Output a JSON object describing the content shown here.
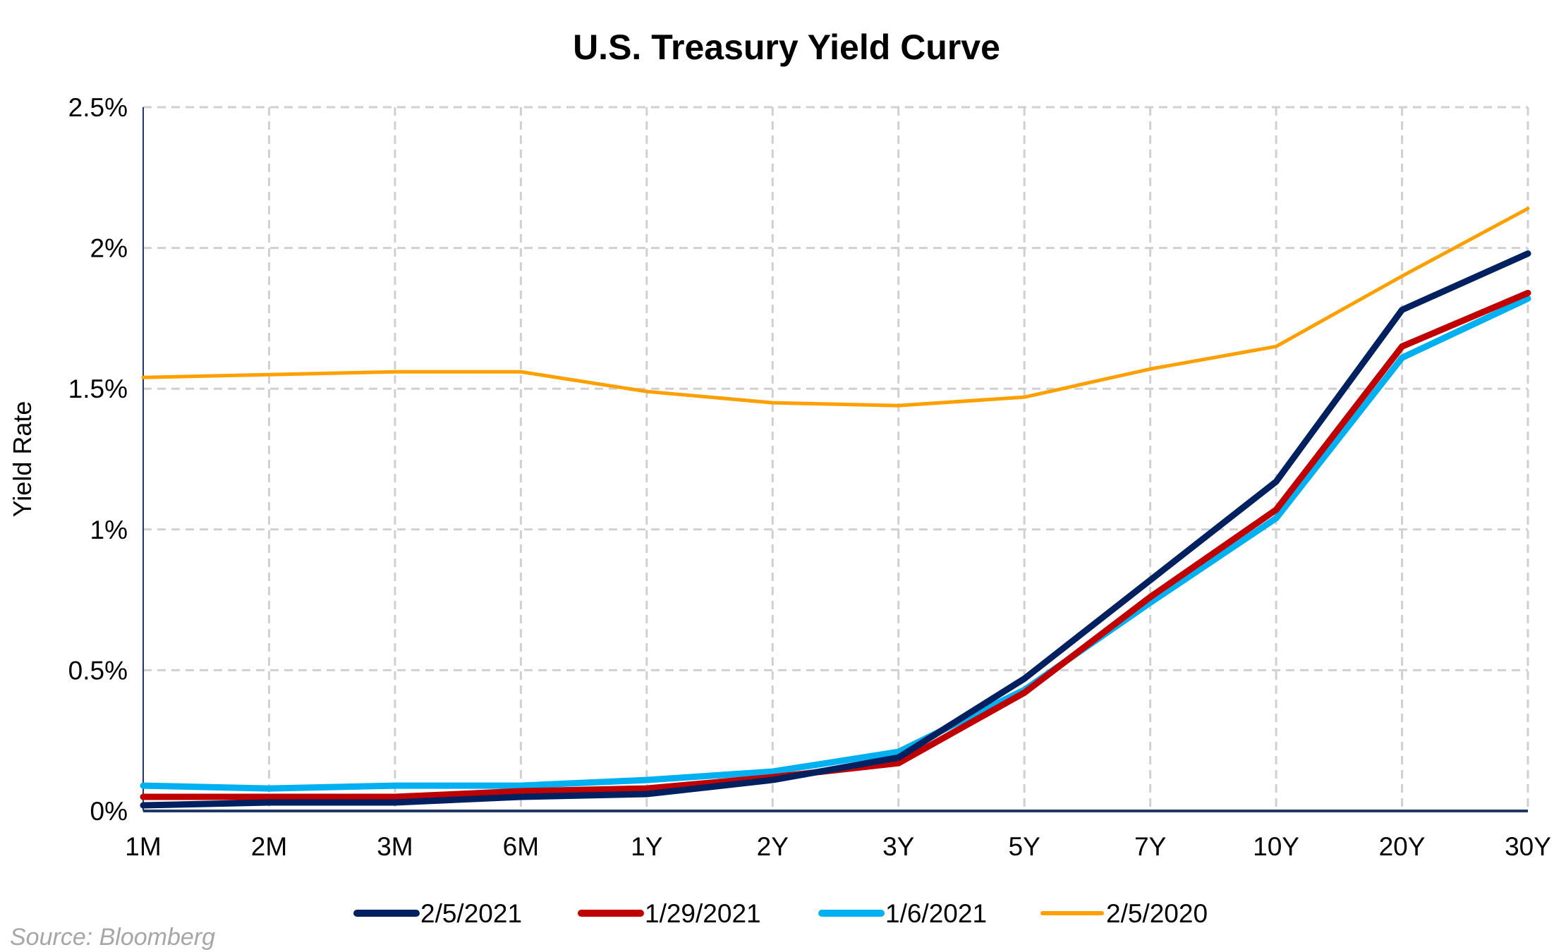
{
  "chart_data": {
    "type": "line",
    "title": "U.S. Treasury Yield Curve",
    "xlabel": "",
    "ylabel": "Yield Rate",
    "ylim": [
      0,
      2.5
    ],
    "yticks": [
      0,
      0.5,
      1,
      1.5,
      2,
      2.5
    ],
    "ytick_labels": [
      "0%",
      "0.5%",
      "1%",
      "1.5%",
      "2%",
      "2.5%"
    ],
    "categories": [
      "1M",
      "2M",
      "3M",
      "6M",
      "1Y",
      "2Y",
      "3Y",
      "5Y",
      "7Y",
      "10Y",
      "20Y",
      "30Y"
    ],
    "grid": true,
    "legend_position": "bottom",
    "series": [
      {
        "name": "2/5/2021",
        "color": "#002060",
        "values": [
          0.02,
          0.03,
          0.03,
          0.05,
          0.06,
          0.11,
          0.19,
          0.47,
          0.82,
          1.17,
          1.78,
          1.98
        ]
      },
      {
        "name": "1/29/2021",
        "color": "#C00000",
        "values": [
          0.05,
          0.05,
          0.05,
          0.07,
          0.08,
          0.12,
          0.17,
          0.42,
          0.76,
          1.07,
          1.65,
          1.84
        ]
      },
      {
        "name": "1/6/2021",
        "color": "#00B0F0",
        "values": [
          0.09,
          0.08,
          0.09,
          0.09,
          0.11,
          0.14,
          0.21,
          0.43,
          0.74,
          1.04,
          1.61,
          1.82
        ]
      },
      {
        "name": "2/5/2020",
        "color": "#FFA000",
        "values": [
          1.54,
          1.55,
          1.56,
          1.56,
          1.49,
          1.45,
          1.44,
          1.47,
          1.57,
          1.65,
          1.9,
          2.14
        ]
      }
    ],
    "source": "Source: Bloomberg"
  }
}
